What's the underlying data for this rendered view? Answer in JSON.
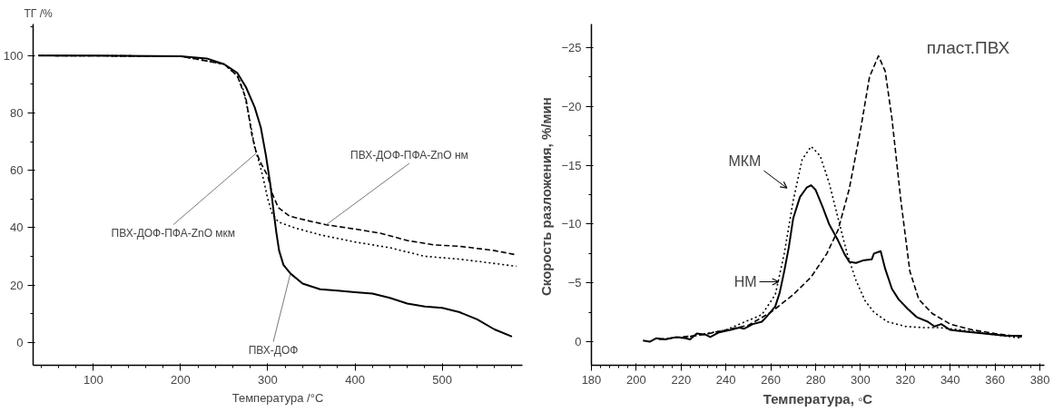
{
  "chart_data": [
    {
      "type": "line",
      "ylabel": "ТГ /%",
      "xlabel": "Температура /°C",
      "xlim": [
        31,
        592
      ],
      "ylim": [
        -8,
        111
      ],
      "xticks": [
        100,
        200,
        300,
        400,
        500
      ],
      "yticks": [
        0,
        20,
        40,
        60,
        80,
        100
      ],
      "grid": false,
      "series": [
        {
          "color": "#000000",
          "line_style": "solid",
          "x": [
            37,
            100,
            200,
            230,
            250,
            265,
            275,
            285,
            292,
            298,
            303,
            307,
            310,
            313,
            318,
            326,
            340,
            360,
            380,
            400,
            420,
            440,
            460,
            480,
            500,
            520,
            540,
            560,
            580
          ],
          "values": [
            100,
            100,
            99.8,
            99,
            97,
            94,
            89,
            82,
            75,
            65,
            55,
            45,
            38,
            32,
            27,
            24,
            20.5,
            18.5,
            18,
            17.5,
            17,
            15.5,
            13.5,
            12.5,
            12,
            10.5,
            8,
            4.5,
            2
          ]
        },
        {
          "color": "#000000",
          "line_style": "dotted",
          "x": [
            37,
            200,
            250,
            265,
            272,
            278,
            285,
            290,
            295,
            300,
            305,
            312,
            330,
            360,
            400,
            440,
            480,
            520,
            560,
            585
          ],
          "values": [
            100,
            99.8,
            97,
            93,
            88,
            80,
            68,
            63,
            57,
            50,
            45,
            42,
            40,
            37.5,
            35,
            33,
            30,
            29,
            27.5,
            26.5
          ]
        },
        {
          "color": "#000000",
          "line_style": "dashed",
          "x": [
            37,
            200,
            250,
            265,
            275,
            282,
            287,
            293,
            300,
            305,
            312,
            325,
            345,
            367,
            400,
            430,
            460,
            490,
            520,
            560,
            585
          ],
          "values": [
            100,
            99.8,
            97,
            93,
            85,
            72,
            66,
            62,
            58,
            52,
            47,
            44,
            42.5,
            41,
            39.5,
            38,
            35.5,
            34,
            33.5,
            32,
            30.5
          ]
        }
      ],
      "annotations": [
        {
          "text": "ПВХ-ДОФ-ПФА-ZnO мкм",
          "x": 287,
          "y": 66
        },
        {
          "text": "ПВХ-ДОФ-ПФА-ZnO нм",
          "x": 367,
          "y": 41
        },
        {
          "text": "ПВХ-ДОФ",
          "x": 326,
          "y": 24
        }
      ]
    },
    {
      "type": "line",
      "ylabel": "Скорость разложения,  %/мин",
      "xlabel": "Температура, ◦C",
      "xlim": [
        180,
        382
      ],
      "ylim": [
        2,
        -27
      ],
      "xticks": [
        180,
        200,
        220,
        240,
        260,
        280,
        300,
        320,
        340,
        360,
        380
      ],
      "yticks": [
        0,
        -5,
        -10,
        -15,
        -20,
        -25
      ],
      "grid": false,
      "series": [
        {
          "color": "#000000",
          "line_style": "solid",
          "x": [
            203,
            206,
            209,
            213,
            218,
            222,
            224,
            227,
            231,
            233,
            237,
            242,
            246,
            248,
            252,
            256,
            258,
            262,
            264,
            266,
            268,
            270,
            273,
            276,
            278,
            280,
            283,
            286,
            290,
            293,
            295,
            298,
            301,
            305,
            306,
            309,
            311,
            314,
            317,
            321,
            325,
            330,
            333,
            336,
            340,
            345,
            350,
            355,
            360,
            365,
            368,
            372
          ],
          "values": [
            -0.1,
            0,
            -0.3,
            -0.2,
            -0.4,
            -0.3,
            -0.2,
            -0.7,
            -0.6,
            -0.4,
            -0.8,
            -1.0,
            -1.2,
            -1.1,
            -1.5,
            -1.7,
            -2.1,
            -3,
            -4.2,
            -6,
            -8,
            -10.5,
            -12.3,
            -13.1,
            -13.3,
            -12.9,
            -11.5,
            -10,
            -8.6,
            -7.4,
            -6.8,
            -6.7,
            -6.9,
            -7.0,
            -7.5,
            -7.7,
            -6.2,
            -4.5,
            -3.6,
            -2.8,
            -2.1,
            -1.7,
            -1.3,
            -1.5,
            -1.0,
            -0.9,
            -0.8,
            -0.7,
            -0.6,
            -0.5,
            -0.5,
            -0.5
          ]
        },
        {
          "color": "#000000",
          "line_style": "dotted",
          "x": [
            220,
            240,
            256,
            262,
            266,
            270,
            274,
            278,
            282,
            286,
            290,
            294,
            298,
            302,
            306,
            312,
            320,
            328,
            335,
            345,
            360,
            372
          ],
          "values": [
            -0.3,
            -1.0,
            -2.3,
            -4,
            -7.5,
            -12,
            -15.5,
            -16.6,
            -15.8,
            -13.5,
            -10.5,
            -7.5,
            -5.2,
            -3.5,
            -2.5,
            -1.7,
            -1.3,
            -1.2,
            -1.2,
            -1.0,
            -0.6,
            -0.3
          ]
        },
        {
          "color": "#000000",
          "line_style": "dashed",
          "x": [
            210,
            230,
            250,
            260,
            270,
            278,
            285,
            290,
            295,
            300,
            304,
            308,
            311,
            314,
            318,
            322,
            326,
            332,
            340,
            350,
            360,
            372
          ],
          "values": [
            -0.2,
            -0.6,
            -1.4,
            -2.5,
            -4,
            -5.5,
            -7.5,
            -9.5,
            -13,
            -18,
            -22.5,
            -24.3,
            -23,
            -19,
            -12,
            -6,
            -3.6,
            -2.4,
            -1.5,
            -1.0,
            -0.7,
            -0.4
          ]
        }
      ],
      "annotations": [
        {
          "text": "МКМ",
          "x": 269,
          "y": -12.8
        },
        {
          "text": "НМ",
          "x": 265,
          "y": -5.1
        },
        "пласт.ПВХ"
      ]
    }
  ]
}
